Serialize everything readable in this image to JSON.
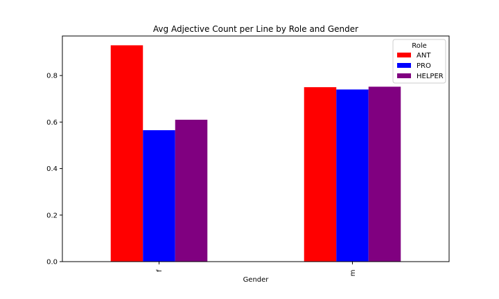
{
  "chart_data": {
    "type": "bar",
    "title": "Avg Adjective Count per Line by Role and Gender",
    "xlabel": "Gender",
    "ylabel": "",
    "categories": [
      "f",
      "m"
    ],
    "series": [
      {
        "name": "ANT",
        "color": "#ff0000",
        "values": [
          0.93,
          0.75
        ]
      },
      {
        "name": "PRO",
        "color": "#0000ff",
        "values": [
          0.565,
          0.74
        ]
      },
      {
        "name": "HELPER",
        "color": "#800080",
        "values": [
          0.61,
          0.752
        ]
      }
    ],
    "ylim": [
      0,
      0.97
    ],
    "yticks": [
      0.0,
      0.2,
      0.4,
      0.6,
      0.8
    ],
    "ytick_labels": [
      "0.0",
      "0.2",
      "0.4",
      "0.6",
      "0.8"
    ],
    "grid": false,
    "legend": {
      "title": "Role",
      "placement": "top-right"
    }
  }
}
